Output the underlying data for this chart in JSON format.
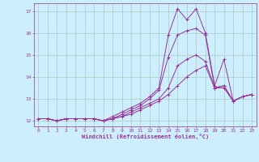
{
  "xlabel": "Windchill (Refroidissement éolien,°C)",
  "background_color": "#cceeff",
  "grid_color": "#aaccbb",
  "line_color": "#993399",
  "x_values": [
    0,
    1,
    2,
    3,
    4,
    5,
    6,
    7,
    8,
    9,
    10,
    11,
    12,
    13,
    14,
    15,
    16,
    17,
    18,
    19,
    20,
    21,
    22,
    23
  ],
  "series": [
    [
      12.1,
      12.1,
      12.0,
      12.1,
      12.1,
      12.1,
      12.1,
      12.0,
      12.2,
      12.4,
      12.6,
      12.8,
      13.1,
      13.5,
      15.9,
      17.1,
      16.6,
      17.1,
      16.0,
      13.6,
      14.8,
      12.9,
      13.1,
      13.2
    ],
    [
      12.1,
      12.1,
      12.0,
      12.1,
      12.1,
      12.1,
      12.1,
      12.0,
      12.1,
      12.3,
      12.5,
      12.7,
      13.0,
      13.4,
      14.9,
      15.9,
      16.1,
      16.2,
      15.9,
      13.5,
      13.5,
      12.9,
      13.1,
      13.2
    ],
    [
      12.1,
      12.1,
      12.0,
      12.1,
      12.1,
      12.1,
      12.1,
      12.0,
      12.1,
      12.2,
      12.4,
      12.6,
      12.8,
      13.0,
      13.5,
      14.5,
      14.8,
      15.0,
      14.7,
      13.5,
      13.6,
      12.9,
      13.1,
      13.2
    ],
    [
      12.1,
      12.1,
      12.0,
      12.1,
      12.1,
      12.1,
      12.1,
      12.0,
      12.1,
      12.2,
      12.3,
      12.5,
      12.7,
      12.9,
      13.2,
      13.6,
      14.0,
      14.3,
      14.5,
      13.5,
      13.6,
      12.9,
      13.1,
      13.2
    ]
  ],
  "ylim": [
    11.75,
    17.35
  ],
  "xlim": [
    -0.5,
    23.5
  ],
  "yticks": [
    12,
    13,
    14,
    15,
    16,
    17
  ],
  "xticks": [
    0,
    1,
    2,
    3,
    4,
    5,
    6,
    7,
    8,
    9,
    10,
    11,
    12,
    13,
    14,
    15,
    16,
    17,
    18,
    19,
    20,
    21,
    22,
    23
  ]
}
